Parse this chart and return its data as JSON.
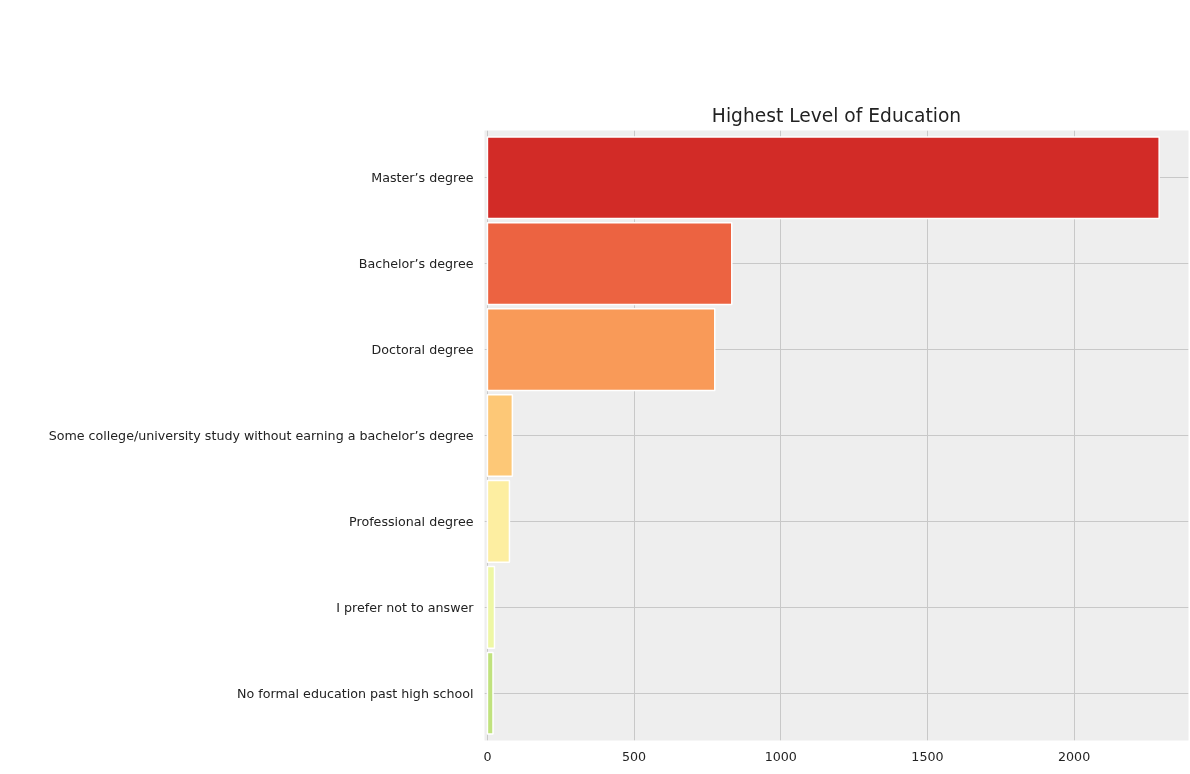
{
  "chart_data": {
    "type": "bar",
    "orientation": "horizontal",
    "title": "Highest Level of Education",
    "categories": [
      "Master’s degree",
      "Bachelor’s degree",
      "Doctoral degree",
      "Some college/university study without earning a bachelor’s degree",
      "Professional degree",
      "I prefer not to answer",
      "No formal education past high school"
    ],
    "values": [
      2290,
      833,
      775,
      85,
      75,
      24,
      19
    ],
    "colors": [
      "#d22b27",
      "#ec6341",
      "#f99a58",
      "#fdc877",
      "#fdeea1",
      "#eef7a5",
      "#c0e27e"
    ],
    "xlim": [
      -10,
      2390
    ],
    "xticks": [
      0,
      500,
      1000,
      1500,
      2000
    ],
    "grid": true
  }
}
